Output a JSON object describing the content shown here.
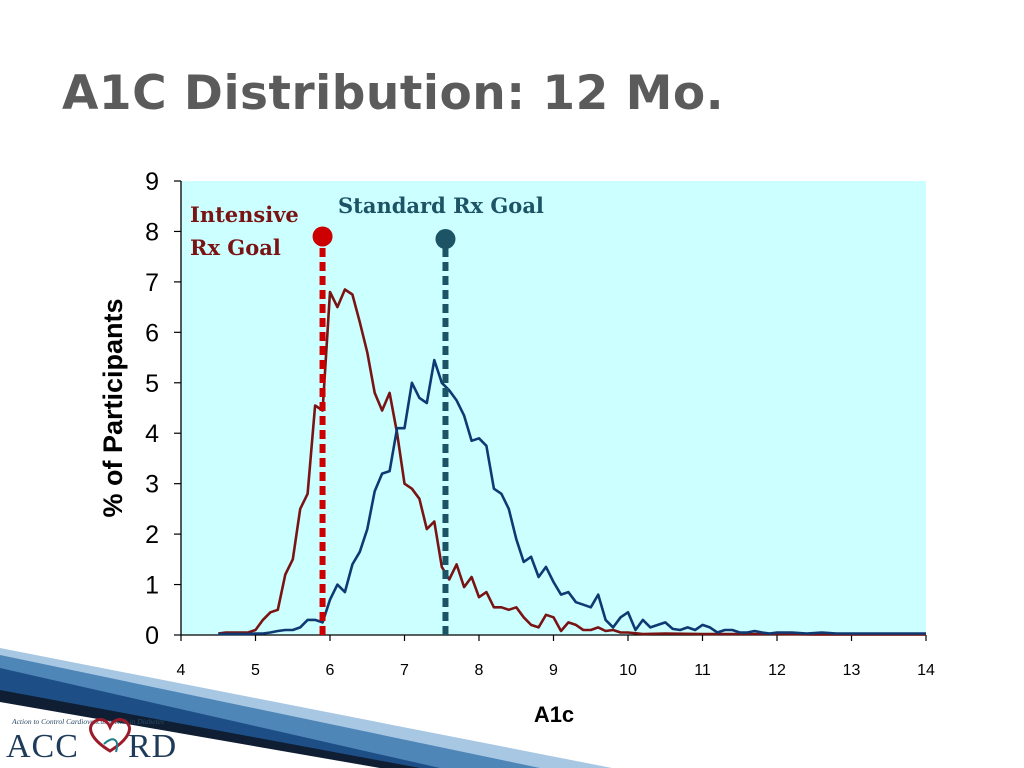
{
  "slide": {
    "title": "A1C Distribution: 12 Mo."
  },
  "logo": {
    "tagline": "Action to Control Cardiovascular Risk in Diabetes",
    "name_left": "ACC",
    "name_right": "RD",
    "full_name": "ACCORD"
  },
  "colors": {
    "plot_background": "#ccffff",
    "intensive": "#7a1414",
    "intensive_marker": "#cc0000",
    "standard": "#0e3a73",
    "standard_marker": "#1c5466",
    "title": "#5b5b5b"
  },
  "chart_data": {
    "type": "line",
    "title": "",
    "xlabel": "A1c",
    "ylabel": "% of Participants",
    "xlim": [
      4,
      14
    ],
    "ylim": [
      0,
      9
    ],
    "xticks": [
      "4",
      "5",
      "6",
      "7",
      "8",
      "9",
      "10",
      "11",
      "12",
      "13",
      "14"
    ],
    "yticks": [
      "0",
      "1",
      "2",
      "3",
      "4",
      "5",
      "6",
      "7",
      "8",
      "9"
    ],
    "series": [
      {
        "name": "Intensive",
        "x": [
          4.5,
          4.6,
          4.7,
          4.8,
          4.9,
          5.0,
          5.1,
          5.2,
          5.3,
          5.4,
          5.5,
          5.6,
          5.7,
          5.8,
          5.9,
          6.0,
          6.1,
          6.2,
          6.3,
          6.4,
          6.5,
          6.6,
          6.7,
          6.8,
          6.9,
          7.0,
          7.1,
          7.2,
          7.3,
          7.4,
          7.5,
          7.6,
          7.7,
          7.8,
          7.9,
          8.0,
          8.1,
          8.2,
          8.3,
          8.4,
          8.5,
          8.6,
          8.7,
          8.8,
          8.9,
          9.0,
          9.1,
          9.2,
          9.3,
          9.4,
          9.5,
          9.6,
          9.7,
          9.8,
          9.9,
          10.0,
          10.2,
          10.5,
          11.0,
          11.5,
          12.0,
          12.5,
          13.0,
          13.5,
          14.0
        ],
        "y": [
          0.03,
          0.05,
          0.05,
          0.05,
          0.05,
          0.1,
          0.3,
          0.45,
          0.5,
          1.2,
          1.5,
          2.5,
          2.8,
          4.55,
          4.45,
          6.8,
          6.5,
          6.85,
          6.75,
          6.2,
          5.6,
          4.8,
          4.45,
          4.8,
          4.0,
          3.0,
          2.9,
          2.7,
          2.1,
          2.25,
          1.35,
          1.1,
          1.4,
          0.95,
          1.15,
          0.75,
          0.85,
          0.55,
          0.55,
          0.5,
          0.55,
          0.35,
          0.2,
          0.15,
          0.4,
          0.35,
          0.08,
          0.25,
          0.2,
          0.1,
          0.1,
          0.15,
          0.08,
          0.1,
          0.05,
          0.05,
          0.02,
          0.03,
          0.02,
          0.02,
          0.02,
          0.01,
          0.01,
          0.01,
          0.01
        ]
      },
      {
        "name": "Standard",
        "x": [
          4.5,
          4.7,
          4.9,
          5.0,
          5.1,
          5.2,
          5.3,
          5.4,
          5.5,
          5.6,
          5.7,
          5.8,
          5.9,
          6.0,
          6.1,
          6.2,
          6.3,
          6.4,
          6.5,
          6.6,
          6.7,
          6.8,
          6.9,
          7.0,
          7.1,
          7.2,
          7.3,
          7.4,
          7.5,
          7.6,
          7.7,
          7.8,
          7.9,
          8.0,
          8.1,
          8.2,
          8.3,
          8.4,
          8.5,
          8.6,
          8.7,
          8.8,
          8.9,
          9.0,
          9.1,
          9.2,
          9.3,
          9.4,
          9.5,
          9.6,
          9.7,
          9.8,
          9.9,
          10.0,
          10.1,
          10.2,
          10.3,
          10.4,
          10.5,
          10.6,
          10.7,
          10.8,
          10.9,
          11.0,
          11.1,
          11.2,
          11.3,
          11.4,
          11.5,
          11.6,
          11.7,
          11.8,
          11.9,
          12.0,
          12.2,
          12.4,
          12.6,
          12.8,
          13.0,
          13.5,
          14.0
        ],
        "y": [
          0.02,
          0.02,
          0.02,
          0.03,
          0.03,
          0.05,
          0.08,
          0.1,
          0.1,
          0.15,
          0.3,
          0.3,
          0.25,
          0.7,
          1.0,
          0.85,
          1.4,
          1.65,
          2.1,
          2.85,
          3.2,
          3.25,
          4.1,
          4.1,
          5.0,
          4.7,
          4.6,
          5.45,
          5.0,
          4.85,
          4.65,
          4.35,
          3.85,
          3.9,
          3.75,
          2.9,
          2.8,
          2.5,
          1.9,
          1.45,
          1.55,
          1.15,
          1.35,
          1.05,
          0.8,
          0.85,
          0.65,
          0.6,
          0.55,
          0.8,
          0.3,
          0.15,
          0.35,
          0.45,
          0.1,
          0.3,
          0.15,
          0.2,
          0.25,
          0.12,
          0.1,
          0.15,
          0.1,
          0.2,
          0.15,
          0.05,
          0.1,
          0.1,
          0.05,
          0.05,
          0.08,
          0.05,
          0.03,
          0.05,
          0.05,
          0.03,
          0.05,
          0.03,
          0.03,
          0.03,
          0.03
        ]
      }
    ],
    "reference_lines": [
      {
        "name": "Intensive Rx Goal",
        "label_lines": [
          "Intensive",
          "Rx Goal"
        ],
        "x": 5.9,
        "y_top": 7.9
      },
      {
        "name": "Standard Rx Goal",
        "label_lines": [
          "Standard Rx Goal"
        ],
        "x": 7.55,
        "y_top": 7.85
      }
    ]
  }
}
